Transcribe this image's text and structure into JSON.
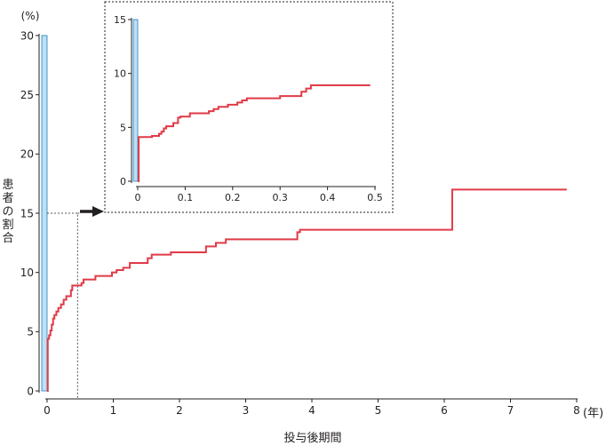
{
  "chart_data": [
    {
      "type": "line",
      "title": "",
      "xlabel": "投与後期間",
      "ylabel": "患者の割合",
      "x_unit": "(年)",
      "y_unit": "(%)",
      "xlim": [
        0,
        8
      ],
      "ylim": [
        0,
        30
      ],
      "x_ticks": [
        "0",
        "1",
        "2",
        "3",
        "4",
        "5",
        "6",
        "7",
        "8"
      ],
      "y_ticks": [
        "0",
        "5",
        "10",
        "15",
        "20",
        "25",
        "30"
      ],
      "grid": false,
      "zoom_region": {
        "x": [
          0,
          0.5
        ],
        "y": [
          0,
          15
        ]
      },
      "series": [
        {
          "color": "#e03a47",
          "step": true,
          "points": [
            [
              0,
              0
            ],
            [
              0.01,
              4.4
            ],
            [
              0.03,
              4.7
            ],
            [
              0.05,
              5.1
            ],
            [
              0.07,
              5.6
            ],
            [
              0.09,
              6.1
            ],
            [
              0.11,
              6.4
            ],
            [
              0.14,
              6.7
            ],
            [
              0.17,
              7.0
            ],
            [
              0.21,
              7.3
            ],
            [
              0.25,
              7.7
            ],
            [
              0.29,
              8.0
            ],
            [
              0.36,
              8.5
            ],
            [
              0.38,
              8.9
            ],
            [
              0.5,
              8.9
            ],
            [
              0.52,
              9.1
            ],
            [
              0.55,
              9.4
            ],
            [
              0.7,
              9.4
            ],
            [
              0.73,
              9.7
            ],
            [
              0.95,
              9.7
            ],
            [
              0.98,
              10.0
            ],
            [
              1.05,
              10.2
            ],
            [
              1.15,
              10.4
            ],
            [
              1.25,
              10.8
            ],
            [
              1.48,
              10.8
            ],
            [
              1.52,
              11.2
            ],
            [
              1.58,
              11.5
            ],
            [
              1.82,
              11.5
            ],
            [
              1.87,
              11.7
            ],
            [
              2.35,
              11.7
            ],
            [
              2.4,
              12.2
            ],
            [
              2.55,
              12.5
            ],
            [
              2.7,
              12.8
            ],
            [
              3.7,
              12.8
            ],
            [
              3.78,
              13.4
            ],
            [
              3.82,
              13.6
            ],
            [
              6.12,
              13.6
            ],
            [
              6.12,
              17.0
            ],
            [
              7.85,
              17.0
            ]
          ]
        }
      ],
      "bars": [
        {
          "x": 0,
          "value": 30,
          "color": "#bde0f3"
        }
      ]
    },
    {
      "type": "line",
      "title": "",
      "inset": true,
      "xlim": [
        0,
        0.5
      ],
      "ylim": [
        0,
        15
      ],
      "x_ticks": [
        "0",
        "0.1",
        "0.2",
        "0.3",
        "0.4",
        "0.5"
      ],
      "y_ticks": [
        "0",
        "5",
        "10",
        "15"
      ],
      "grid": false,
      "series": [
        {
          "color": "#e03a47",
          "step": true,
          "points": [
            [
              0,
              0
            ],
            [
              0.002,
              4.1
            ],
            [
              0.03,
              4.2
            ],
            [
              0.045,
              4.4
            ],
            [
              0.05,
              4.6
            ],
            [
              0.055,
              4.9
            ],
            [
              0.06,
              5.1
            ],
            [
              0.075,
              5.4
            ],
            [
              0.085,
              5.9
            ],
            [
              0.09,
              6.0
            ],
            [
              0.11,
              6.3
            ],
            [
              0.15,
              6.5
            ],
            [
              0.16,
              6.7
            ],
            [
              0.17,
              6.9
            ],
            [
              0.19,
              7.1
            ],
            [
              0.21,
              7.3
            ],
            [
              0.22,
              7.5
            ],
            [
              0.23,
              7.7
            ],
            [
              0.3,
              7.9
            ],
            [
              0.345,
              8.3
            ],
            [
              0.355,
              8.6
            ],
            [
              0.365,
              8.9
            ],
            [
              0.49,
              8.9
            ]
          ]
        }
      ],
      "bars": [
        {
          "x": 0,
          "value": 15,
          "color": "#bde0f3"
        }
      ]
    }
  ]
}
